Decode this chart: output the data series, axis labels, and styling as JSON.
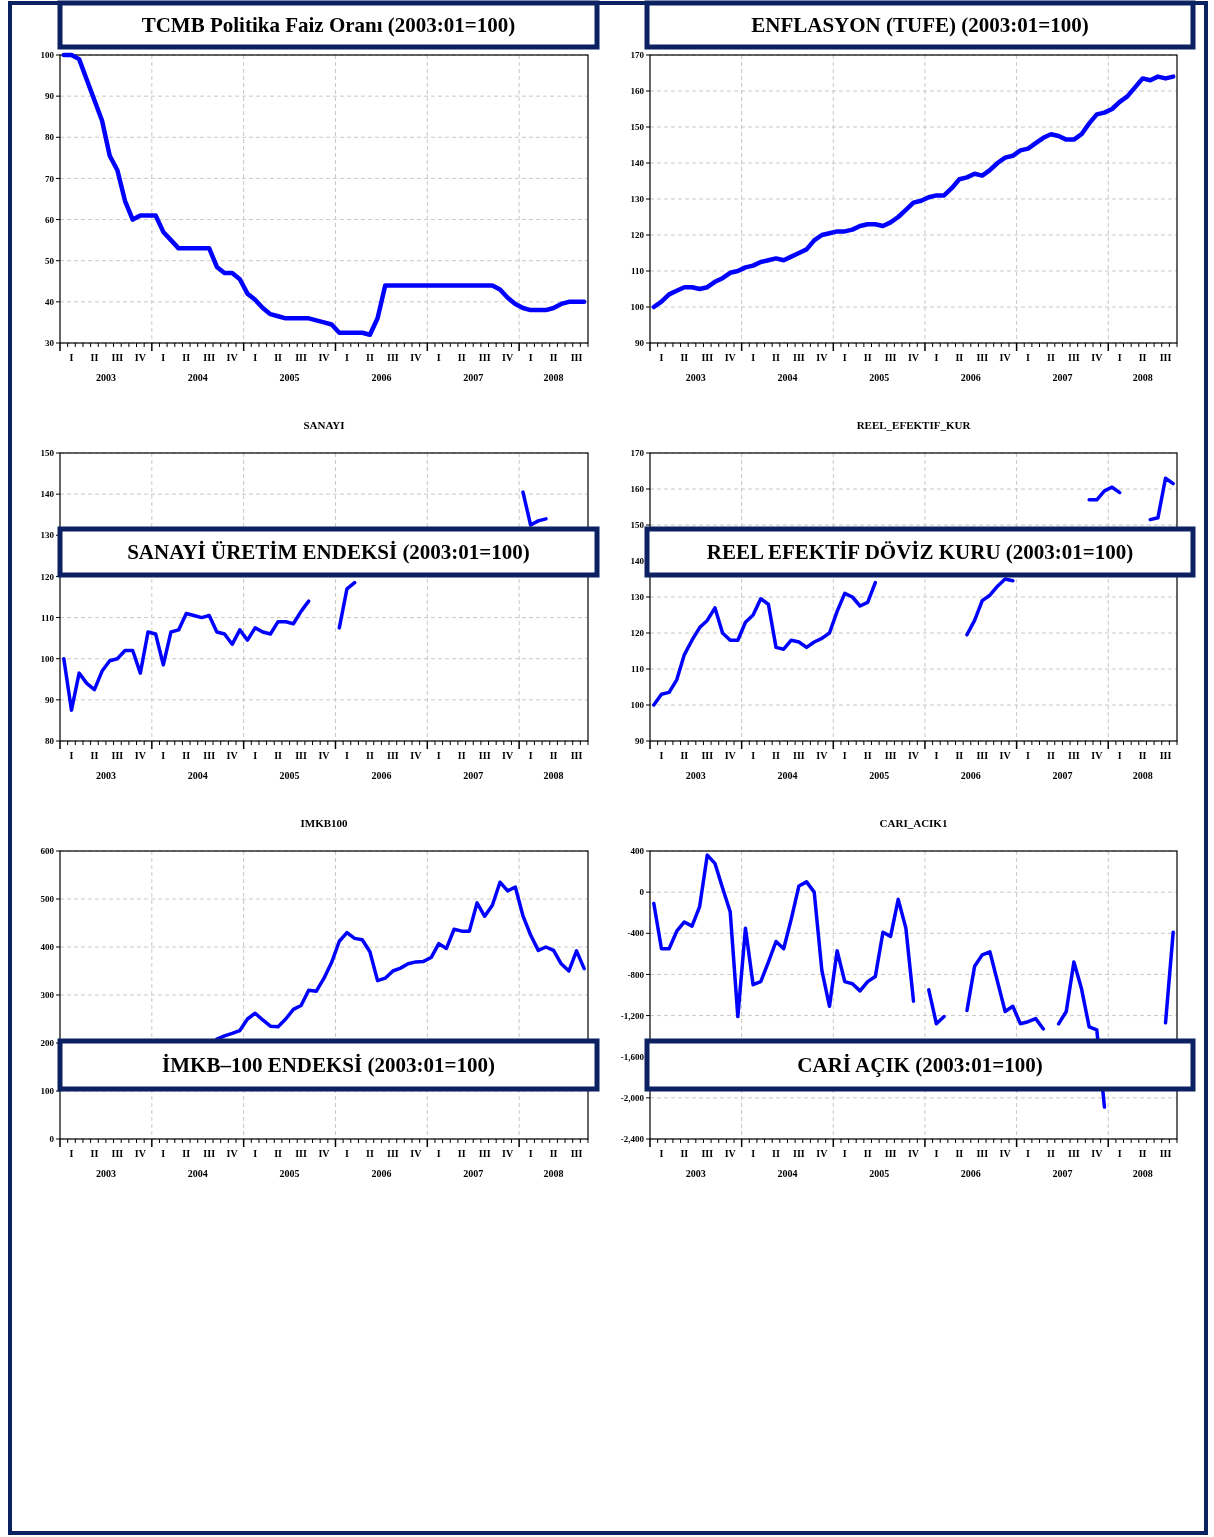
{
  "chart_data": [
    {
      "type": "line",
      "title": "TCMB Politika Faiz Oranı (2003:01=100)",
      "grid": true,
      "ylim": [
        30,
        100
      ],
      "yticks": [
        30,
        40,
        50,
        60,
        70,
        80,
        90,
        100
      ],
      "annotations": [
        "2003",
        "2004",
        "2005",
        "2006",
        "2007",
        "2008"
      ],
      "categories": [
        null,
        "I",
        null,
        null,
        "II",
        null,
        null,
        "III",
        null,
        null,
        "IV",
        null,
        null,
        "I",
        null,
        null,
        "II",
        null,
        null,
        "III",
        null,
        null,
        "IV",
        null,
        null,
        "I",
        null,
        null,
        "II",
        null,
        null,
        "III",
        null,
        null,
        "IV",
        null,
        null,
        "I",
        null,
        null,
        "II",
        null,
        null,
        "III",
        null,
        null,
        "IV",
        null,
        null,
        "I",
        null,
        null,
        "II",
        null,
        null,
        "III",
        null,
        null,
        "IV",
        null,
        null,
        "I",
        null,
        null,
        "II",
        null,
        null,
        "III",
        null
      ],
      "series": [
        {
          "color": "#0000ff",
          "values": [
            100,
            100,
            99,
            94,
            89,
            84,
            75.5,
            72,
            64.5,
            60,
            61,
            61,
            61,
            57,
            55,
            53,
            53,
            53,
            53,
            53,
            48.5,
            47,
            47,
            45.5,
            42,
            40.5,
            38.5,
            37,
            36.5,
            36,
            36,
            36,
            36,
            35.5,
            35,
            34.5,
            32.5,
            32.5,
            32.5,
            32.5,
            32,
            36,
            44,
            44,
            44,
            44,
            44,
            44,
            44,
            44,
            44,
            44,
            44,
            44,
            44,
            44,
            44,
            43,
            41,
            39.5,
            38.5,
            38,
            38,
            38,
            38.5,
            39.5,
            40,
            40,
            40
          ]
        }
      ]
    },
    {
      "type": "line",
      "title": "ENFLASYON (TUFE)  (2003:01=100)",
      "grid": true,
      "ylim": [
        90,
        170
      ],
      "yticks": [
        90,
        100,
        110,
        120,
        130,
        140,
        150,
        160,
        170
      ],
      "annotations": [
        "2003",
        "2004",
        "2005",
        "2006",
        "2007",
        "2008"
      ],
      "categories": [
        null,
        "I",
        null,
        null,
        "II",
        null,
        null,
        "III",
        null,
        null,
        "IV",
        null,
        null,
        "I",
        null,
        null,
        "II",
        null,
        null,
        "III",
        null,
        null,
        "IV",
        null,
        null,
        "I",
        null,
        null,
        "II",
        null,
        null,
        "III",
        null,
        null,
        "IV",
        null,
        null,
        "I",
        null,
        null,
        "II",
        null,
        null,
        "III",
        null,
        null,
        "IV",
        null,
        null,
        "I",
        null,
        null,
        "II",
        null,
        null,
        "III",
        null,
        null,
        "IV",
        null,
        null,
        "I",
        null,
        null,
        "II",
        null,
        null,
        "III",
        null
      ],
      "series": [
        {
          "color": "#0000ff",
          "values": [
            100,
            101.5,
            103.5,
            104.5,
            105.5,
            105.5,
            105,
            105.5,
            107,
            108,
            109.5,
            110,
            111,
            111.5,
            112.5,
            113,
            113.5,
            113,
            114,
            115,
            116,
            118.5,
            120,
            120.5,
            121,
            121,
            121.5,
            122.5,
            123,
            123,
            122.5,
            123.5,
            125,
            127,
            129,
            129.5,
            130.5,
            131,
            131,
            133,
            135.5,
            136,
            137,
            136.5,
            138,
            140,
            141.5,
            142,
            143.5,
            144,
            145.5,
            147,
            148,
            147.5,
            146.5,
            146.5,
            148,
            151,
            153.5,
            154,
            155,
            157,
            158.5,
            161,
            163.5,
            163,
            164,
            163.5,
            164
          ]
        }
      ]
    },
    {
      "type": "line",
      "title": "SANAYİ ÜRETİM ENDEKSİ  (2003:01=100)",
      "subtitle": "SANAYI",
      "grid": true,
      "ylim": [
        80,
        150
      ],
      "yticks": [
        80,
        90,
        100,
        110,
        120,
        130,
        140,
        150
      ],
      "annotations": [
        "2003",
        "2004",
        "2005",
        "2006",
        "2007",
        "2008"
      ],
      "categories": [
        null,
        "I",
        null,
        null,
        "II",
        null,
        null,
        "III",
        null,
        null,
        "IV",
        null,
        null,
        "I",
        null,
        null,
        "II",
        null,
        null,
        "III",
        null,
        null,
        "IV",
        null,
        null,
        "I",
        null,
        null,
        "II",
        null,
        null,
        "III",
        null,
        null,
        "IV",
        null,
        null,
        "I",
        null,
        null,
        "II",
        null,
        null,
        "III",
        null,
        null,
        "IV",
        null,
        null,
        "I",
        null,
        null,
        "II",
        null,
        null,
        "III",
        null,
        null,
        "IV",
        null,
        null,
        "I",
        null,
        null,
        "II",
        null,
        null,
        "III",
        null
      ],
      "series": [
        {
          "color": "#0000ff",
          "values": [
            100,
            87.5,
            96.5,
            94,
            92.5,
            97,
            99.5,
            100,
            102,
            102,
            96.5,
            106.5,
            106,
            98.5,
            106.5,
            107,
            111,
            110.5,
            110,
            110.5,
            106.5,
            106,
            103.5,
            107,
            104.5,
            107.5,
            106.5,
            106,
            109,
            109,
            108.5,
            111.5,
            114,
            null,
            null,
            null,
            107.5,
            117,
            118.5,
            null,
            null,
            null,
            null,
            null,
            null,
            null,
            null,
            null,
            null,
            null,
            null,
            null,
            null,
            null,
            null,
            null,
            null,
            null,
            null,
            null,
            140.5,
            132.5,
            133.5,
            134,
            null,
            null,
            null,
            null,
            null
          ]
        }
      ]
    },
    {
      "type": "line",
      "title": "REEL EFEKTİF DÖVİZ KURU  (2003:01=100)",
      "subtitle": "REEL_EFEKTIF_KUR",
      "grid": true,
      "ylim": [
        90,
        170
      ],
      "yticks": [
        90,
        100,
        110,
        120,
        130,
        140,
        150,
        160,
        170
      ],
      "annotations": [
        "2003",
        "2004",
        "2005",
        "2006",
        "2007",
        "2008"
      ],
      "categories": [
        null,
        "I",
        null,
        null,
        "II",
        null,
        null,
        "III",
        null,
        null,
        "IV",
        null,
        null,
        "I",
        null,
        null,
        "II",
        null,
        null,
        "III",
        null,
        null,
        "IV",
        null,
        null,
        "I",
        null,
        null,
        "II",
        null,
        null,
        "III",
        null,
        null,
        "IV",
        null,
        null,
        "I",
        null,
        null,
        "II",
        null,
        null,
        "III",
        null,
        null,
        "IV",
        null,
        null,
        "I",
        null,
        null,
        "II",
        null,
        null,
        "III",
        null,
        null,
        "IV",
        null,
        null,
        "I",
        null,
        null,
        "II",
        null,
        null,
        "III",
        null
      ],
      "series": [
        {
          "color": "#0000ff",
          "values": [
            100,
            103,
            103.5,
            107,
            114,
            118,
            121.5,
            123.5,
            127,
            120,
            118,
            118,
            123,
            125,
            129.5,
            128,
            116,
            115.5,
            118,
            117.5,
            116,
            117.5,
            118.5,
            120,
            126,
            131,
            130,
            127.5,
            128.5,
            134,
            null,
            null,
            null,
            null,
            null,
            null,
            null,
            null,
            null,
            null,
            null,
            119.5,
            123.5,
            129,
            130.5,
            133,
            135,
            134.5,
            null,
            null,
            null,
            null,
            null,
            null,
            null,
            null,
            null,
            157,
            157,
            159.5,
            160.5,
            159,
            null,
            null,
            null,
            151.5,
            152,
            163,
            161.5
          ]
        }
      ]
    },
    {
      "type": "line",
      "title": "İMKB–100 ENDEKSİ  (2003:01=100)",
      "subtitle": "IMKB100",
      "grid": true,
      "ylim": [
        0,
        600
      ],
      "yticks": [
        0,
        100,
        200,
        300,
        400,
        500,
        600
      ],
      "annotations": [
        "2003",
        "2004",
        "2005",
        "2006",
        "2007",
        "2008"
      ],
      "categories": [
        null,
        "I",
        null,
        null,
        "II",
        null,
        null,
        "III",
        null,
        null,
        "IV",
        null,
        null,
        "I",
        null,
        null,
        "II",
        null,
        null,
        "III",
        null,
        null,
        "IV",
        null,
        null,
        "I",
        null,
        null,
        "II",
        null,
        null,
        "III",
        null,
        null,
        "IV",
        null,
        null,
        "I",
        null,
        null,
        "II",
        null,
        null,
        "III",
        null,
        null,
        "IV",
        null,
        null,
        "I",
        null,
        null,
        "II",
        null,
        null,
        "III",
        null,
        null,
        "IV",
        null,
        null,
        "I",
        null,
        null,
        "II",
        null,
        null,
        "III",
        null
      ],
      "series": [
        {
          "color": "#0000ff",
          "values": [
            null,
            null,
            null,
            null,
            null,
            null,
            null,
            null,
            null,
            null,
            null,
            null,
            null,
            null,
            null,
            null,
            null,
            null,
            null,
            null,
            208,
            215,
            220,
            226,
            250,
            262,
            248,
            235,
            234,
            250,
            270,
            278,
            310,
            308,
            335,
            368,
            412,
            430,
            418,
            415,
            390,
            330,
            335,
            350,
            356,
            365,
            369,
            370,
            378,
            407,
            397,
            437,
            433,
            433,
            492,
            464,
            487,
            535,
            517,
            525,
            465,
            425,
            393,
            400,
            393,
            365,
            350,
            392,
            355
          ]
        }
      ]
    },
    {
      "type": "line",
      "title": "CARİ AÇIK   (2003:01=100)",
      "subtitle": "CARI_ACIK1",
      "grid": true,
      "ylim": [
        -2400,
        400
      ],
      "yticks": [
        {
          "value": -2400,
          "label": "-2,400"
        },
        {
          "value": -2000,
          "label": "-2,000"
        },
        {
          "value": -1600,
          "label": "-1,600"
        },
        {
          "value": -1200,
          "label": "-1,200"
        },
        -800,
        -400,
        0,
        400
      ],
      "annotations": [
        "2003",
        "2004",
        "2005",
        "2006",
        "2007",
        "2008"
      ],
      "categories": [
        null,
        "I",
        null,
        null,
        "II",
        null,
        null,
        "III",
        null,
        null,
        "IV",
        null,
        null,
        "I",
        null,
        null,
        "II",
        null,
        null,
        "III",
        null,
        null,
        "IV",
        null,
        null,
        "I",
        null,
        null,
        "II",
        null,
        null,
        "III",
        null,
        null,
        "IV",
        null,
        null,
        "I",
        null,
        null,
        "II",
        null,
        null,
        "III",
        null,
        null,
        "IV",
        null,
        null,
        "I",
        null,
        null,
        "II",
        null,
        null,
        "III",
        null,
        null,
        "IV",
        null,
        null,
        "I",
        null,
        null,
        "II",
        null,
        null,
        "III",
        null
      ],
      "series": [
        {
          "color": "#0000ff",
          "values": [
            -110,
            -550,
            -550,
            -380,
            -290,
            -330,
            -140,
            360,
            280,
            40,
            -190,
            -1210,
            -350,
            -900,
            -870,
            -680,
            -480,
            -550,
            -260,
            60,
            100,
            0,
            -760,
            -1110,
            -570,
            -870,
            -890,
            -960,
            -870,
            -820,
            -390,
            -430,
            -70,
            -350,
            -1060,
            null,
            -950,
            -1280,
            -1210,
            null,
            null,
            -1150,
            -720,
            -610,
            -580,
            -870,
            -1160,
            -1110,
            -1280,
            -1260,
            -1230,
            -1330,
            null,
            -1280,
            -1160,
            -680,
            -940,
            -1310,
            -1340,
            -2090,
            null,
            null,
            null,
            null,
            null,
            null,
            null,
            -1270,
            -390
          ]
        }
      ]
    }
  ]
}
